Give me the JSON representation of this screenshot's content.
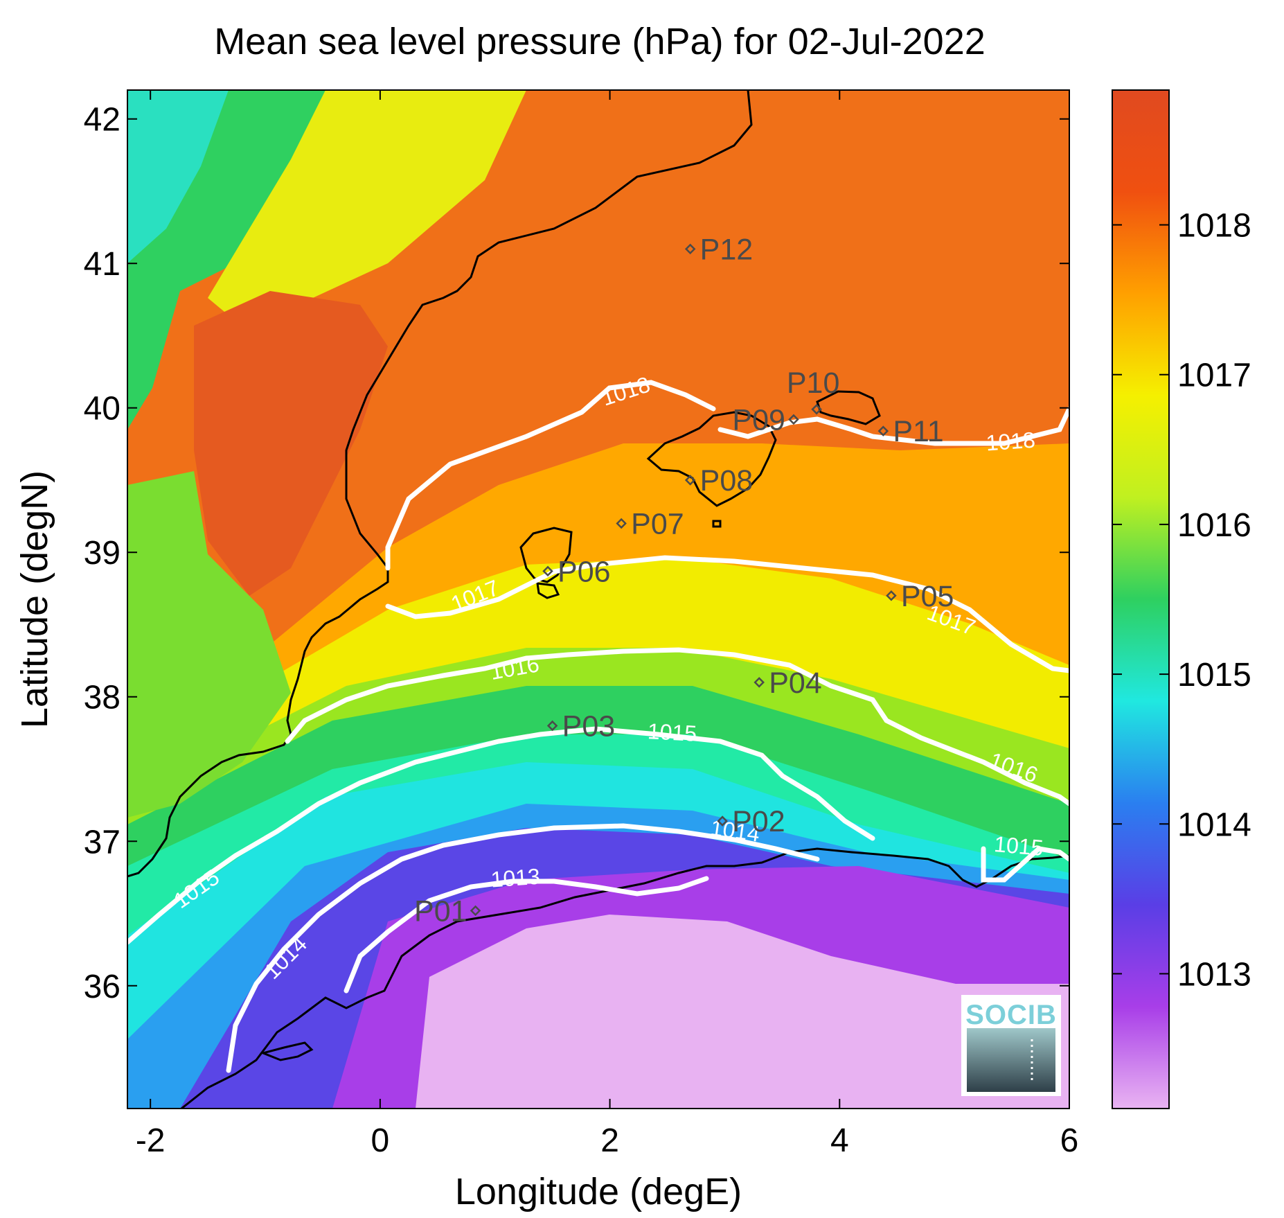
{
  "title": "Mean sea level pressure (hPa) for 02-Jul-2022",
  "xlabel": "Longitude (degE)",
  "ylabel": "Latitude (degN)",
  "x_ticks": [
    "-2",
    "0",
    "2",
    "4",
    "6"
  ],
  "y_ticks": [
    "36",
    "37",
    "38",
    "39",
    "40",
    "41",
    "42"
  ],
  "colorbar": {
    "ticks": [
      "1013",
      "1014",
      "1015",
      "1016",
      "1017",
      "1018"
    ],
    "range_hpa": [
      1012.1,
      1018.9
    ],
    "colors": [
      "#e9b4f2",
      "#a83ee8",
      "#5a3ee6",
      "#2a7ff0",
      "#20e8e0",
      "#2ed060",
      "#c0f020",
      "#f5f000",
      "#ffa000",
      "#f05010",
      "#e04a20"
    ]
  },
  "logo_text": "SOCIB",
  "chart_data": {
    "type": "heatmap",
    "variable": "Mean sea level pressure (hPa)",
    "date": "02-Jul-2022",
    "xlim": [
      -2.2,
      6.0
    ],
    "ylim": [
      35.15,
      42.2
    ],
    "contour_levels": [
      1013,
      1014,
      1015,
      1016,
      1017,
      1018
    ],
    "contour_label_texts": [
      "1013",
      "1014",
      "1015",
      "1015",
      "1014",
      "1015",
      "1016",
      "1016",
      "1017",
      "1017",
      "1018",
      "1018"
    ],
    "stations": [
      {
        "name": "P01",
        "lon": 0.83,
        "lat": 36.52
      },
      {
        "name": "P02",
        "lon": 2.98,
        "lat": 37.14
      },
      {
        "name": "P03",
        "lon": 1.5,
        "lat": 37.8
      },
      {
        "name": "P04",
        "lon": 3.3,
        "lat": 38.1
      },
      {
        "name": "P05",
        "lon": 4.45,
        "lat": 38.7
      },
      {
        "name": "P06",
        "lon": 1.46,
        "lat": 38.87
      },
      {
        "name": "P07",
        "lon": 2.1,
        "lat": 39.2
      },
      {
        "name": "P08",
        "lon": 2.7,
        "lat": 39.5
      },
      {
        "name": "P09",
        "lon": 3.6,
        "lat": 39.92
      },
      {
        "name": "P10",
        "lon": 3.8,
        "lat": 39.99
      },
      {
        "name": "P11",
        "lon": 4.38,
        "lat": 39.84
      },
      {
        "name": "P12",
        "lon": 2.7,
        "lat": 41.1
      }
    ]
  }
}
